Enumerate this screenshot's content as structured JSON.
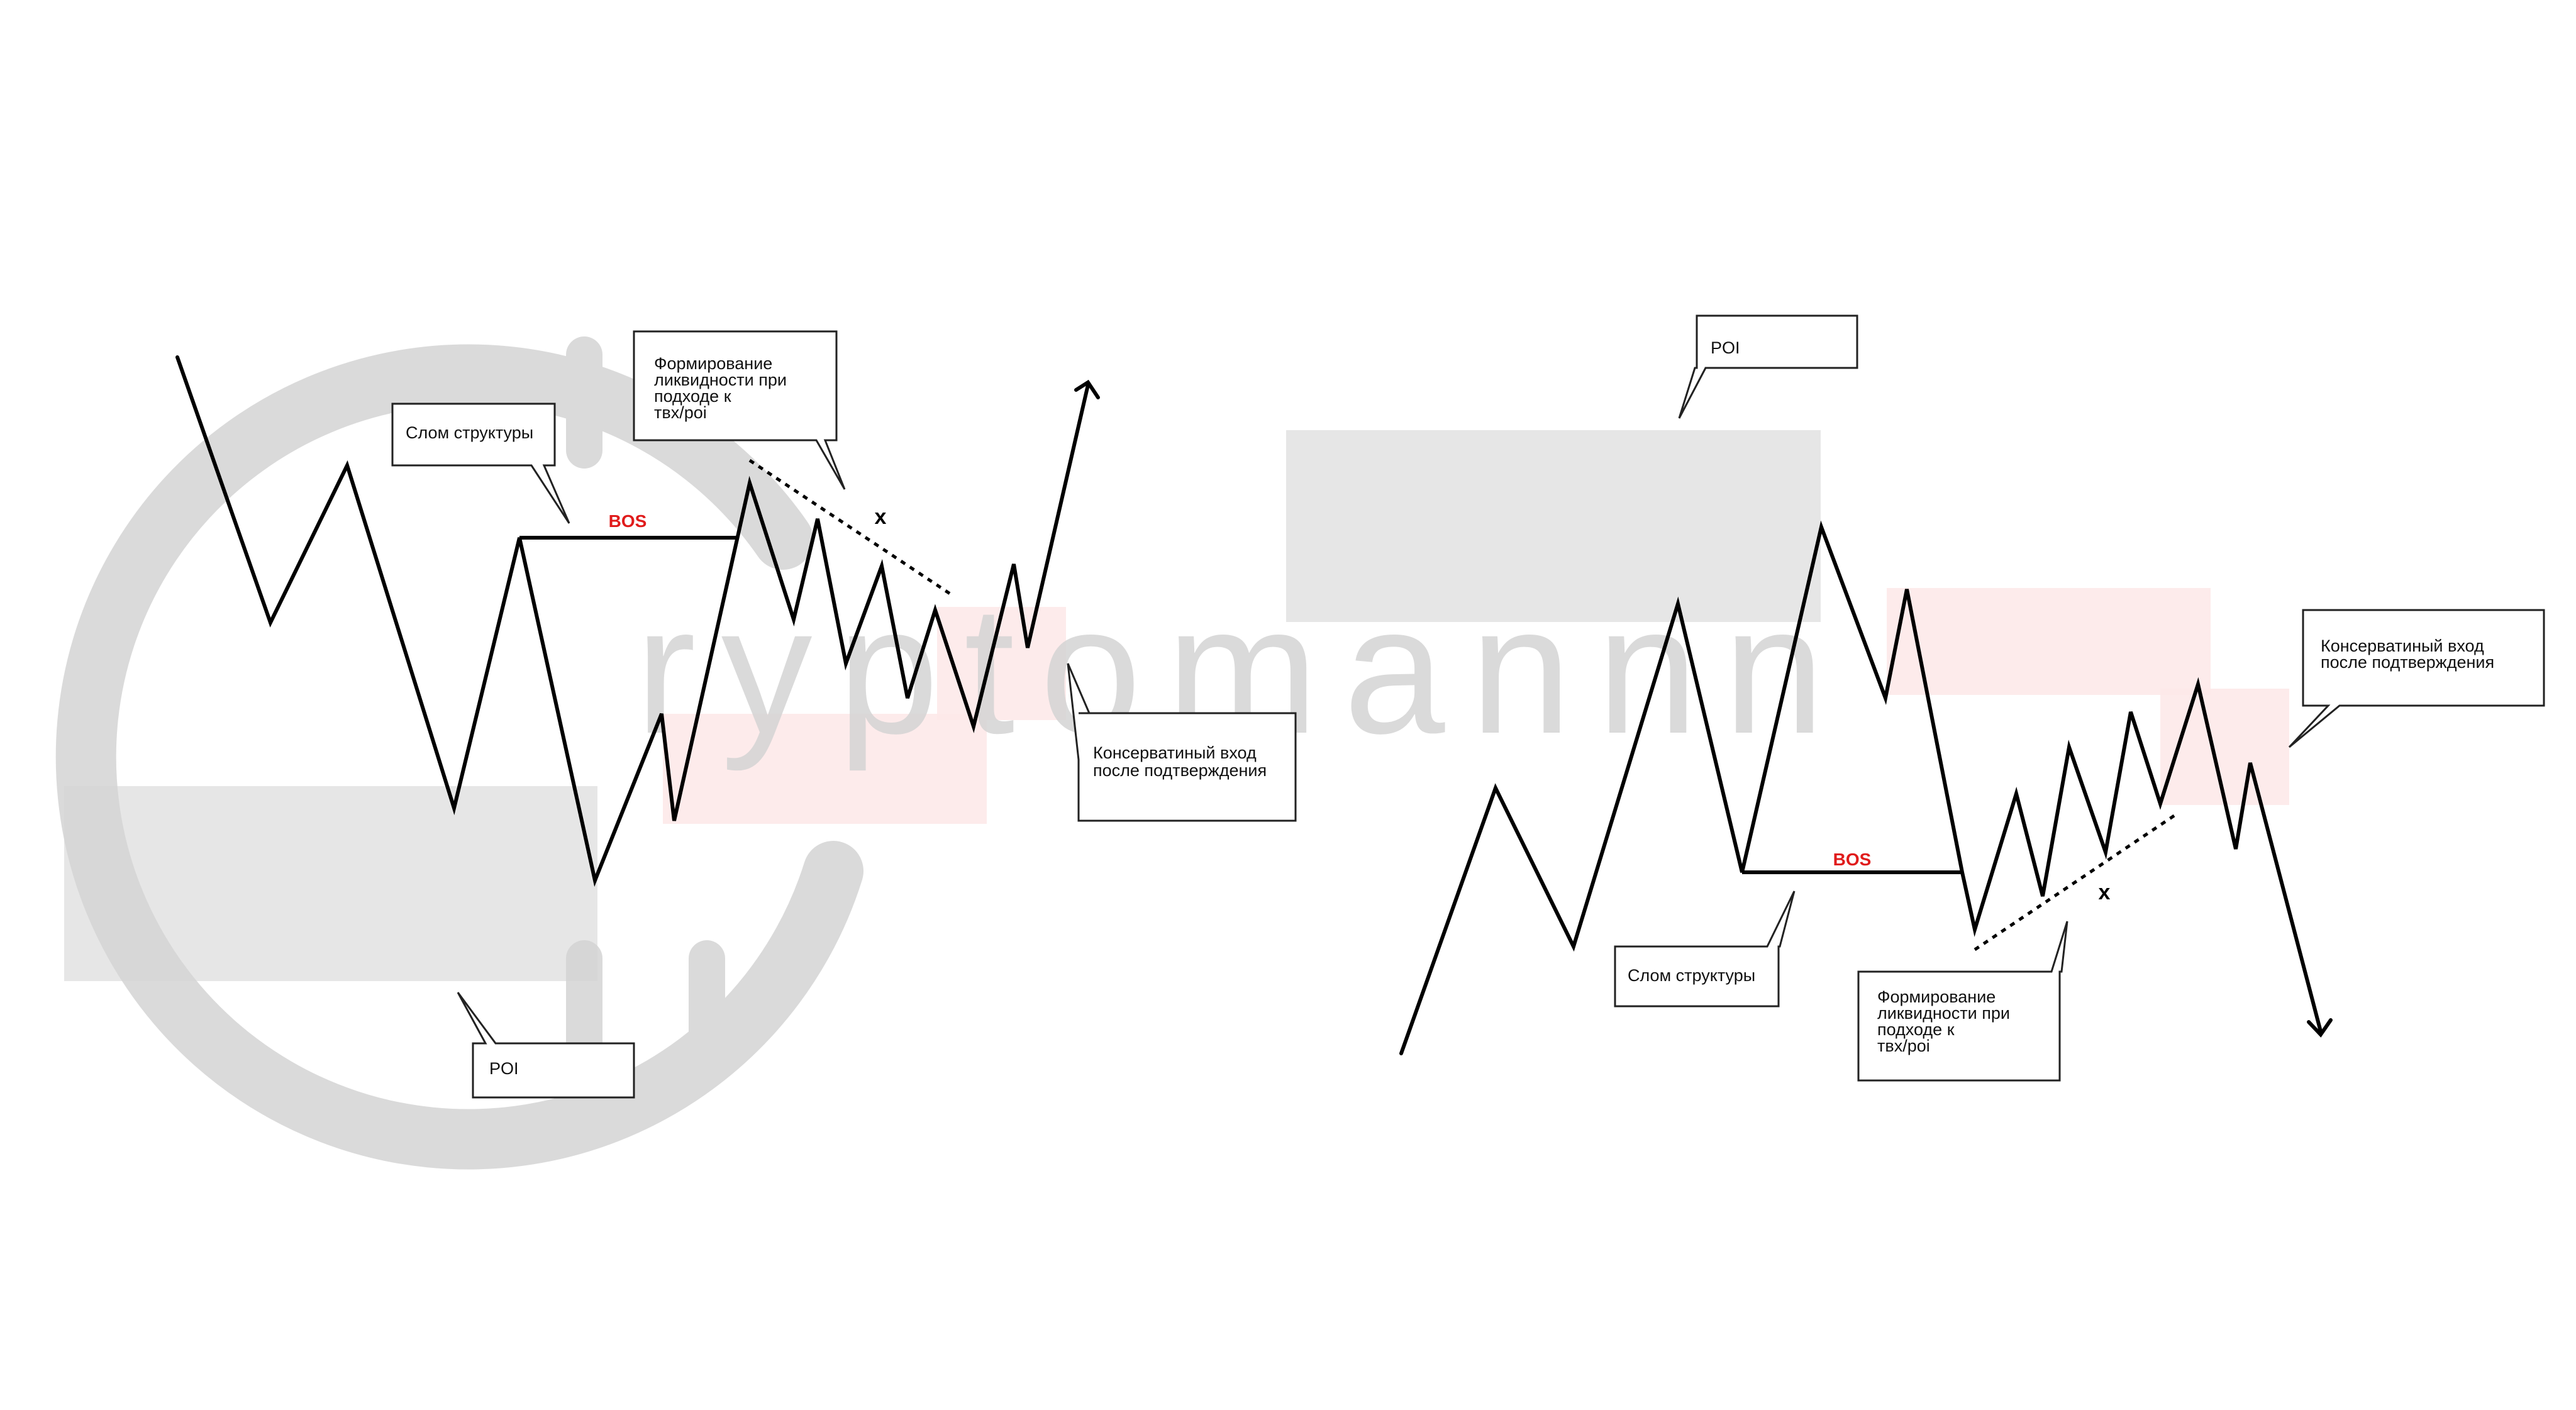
{
  "watermark": {
    "text": "ryptomannn"
  },
  "colors": {
    "poi_zone": "#e6e6e6",
    "entry_zone": "#fde9e9",
    "bos_label": "#e01b1b",
    "line": "#000000",
    "watermark": "#d4d4d4"
  },
  "left_scenario": {
    "direction": "bullish",
    "bos_label": "BOS",
    "x_mark": "x",
    "callouts": {
      "structure_break": "Слом структуры",
      "liquidity_lines": [
        "Формирование",
        "ликвидности при",
        "подходе к",
        "твх/poi"
      ],
      "entry_lines": [
        "Консерватиный вход",
        "после подтверждения"
      ],
      "poi": "POI"
    }
  },
  "right_scenario": {
    "direction": "bearish",
    "bos_label": "BOS",
    "x_mark": "x",
    "callouts": {
      "poi": "POI",
      "entry_lines": [
        "Консерватиный вход",
        "после подтверждения"
      ],
      "structure_break": "Слом структуры",
      "liquidity_lines": [
        "Формирование",
        "ликвидности при",
        "подходе к",
        "твх/poi"
      ]
    }
  }
}
